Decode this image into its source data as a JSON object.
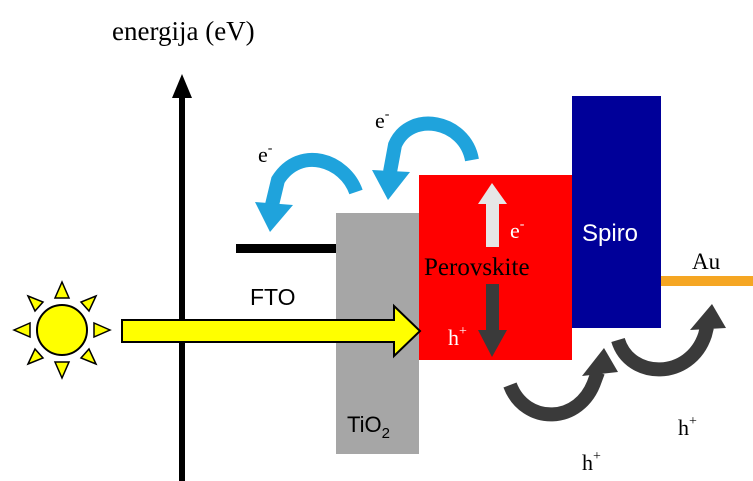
{
  "axis": {
    "label": "energija (eV)"
  },
  "layers": {
    "fto": {
      "label": "FTO",
      "color": "#000000"
    },
    "tio2": {
      "label_main": "TiO",
      "label_sub": "2",
      "color": "#a6a6a6"
    },
    "perovskite": {
      "label": "Perovskite",
      "color": "#ff0000"
    },
    "spiro": {
      "label": "Spiro",
      "color": "#000099"
    },
    "au": {
      "label": "Au",
      "color": "#f5a623"
    }
  },
  "carriers": {
    "electron_1": {
      "base": "e",
      "sup": "-"
    },
    "electron_2": {
      "base": "e",
      "sup": "-"
    },
    "electron_perovskite": {
      "base": "e",
      "sup": "-"
    },
    "hole_perovskite": {
      "base": "h",
      "sup": "+"
    },
    "hole_1": {
      "base": "h",
      "sup": "+"
    },
    "hole_2": {
      "base": "h",
      "sup": "+"
    }
  },
  "icons": {
    "sun": "sun-icon",
    "light": "light-arrow-icon"
  },
  "colors": {
    "electron_arrow": "#1fa3dc",
    "hole_arrow": "#3a3a3a",
    "light_arrow": "#ffff00",
    "sun": "#ffff00"
  }
}
